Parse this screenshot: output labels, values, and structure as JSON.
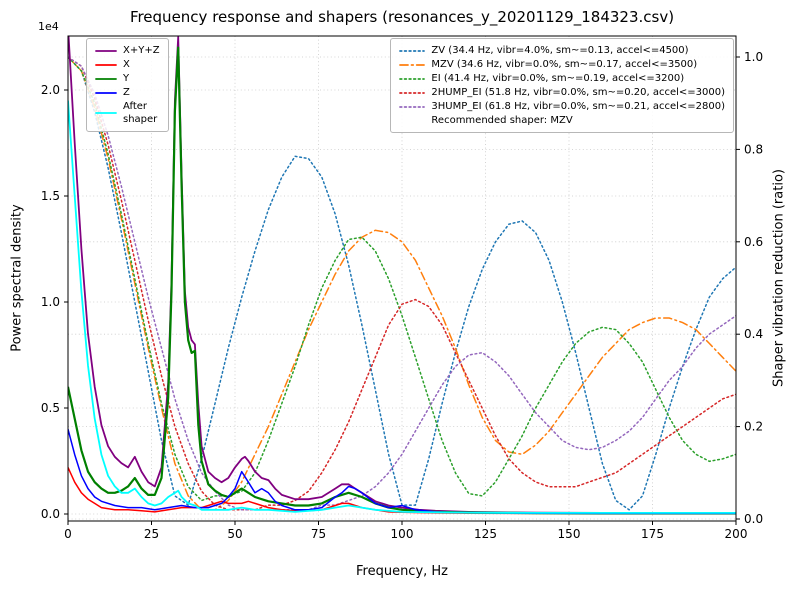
{
  "chart_data": {
    "type": "line",
    "title": "Frequency response and shapers (resonances_y_20201129_184323.csv)",
    "xlabel": "Frequency, Hz",
    "ylabel_left": "Power spectral density",
    "ylabel_right": "Shaper vibration reduction (ratio)",
    "left_axis_offset": "1e4",
    "xlim": [
      0,
      200
    ],
    "left_ylim_1e4": [
      0,
      2.25
    ],
    "right_ylim": [
      0,
      1.0
    ],
    "grid": true,
    "legend_positions": {
      "psd": "upper left",
      "shapers": "upper right"
    },
    "x_ticks": [
      0,
      25,
      50,
      75,
      100,
      125,
      150,
      175,
      200
    ],
    "left_tick_values": [
      0,
      0.5,
      1.0,
      1.5,
      2.0
    ],
    "left_tick_labels": [
      "0.0",
      "0.5",
      "1.0",
      "1.5",
      "2.0"
    ],
    "right_tick_values": [
      0,
      0.2,
      0.4,
      0.6,
      0.8,
      1.0
    ],
    "right_tick_labels": [
      "0.0",
      "0.2",
      "0.4",
      "0.6",
      "0.8",
      "1.0"
    ],
    "psd_units": "1e4",
    "psd_series": [
      {
        "name": "sum",
        "label": "X+Y+Z",
        "color": "#800080",
        "style": "solid",
        "width": 1.8,
        "x": [
          0,
          2,
          4,
          6,
          8,
          10,
          12,
          14,
          16,
          18,
          20,
          22,
          24,
          26,
          28,
          30,
          31,
          32,
          33,
          34,
          35,
          36,
          37,
          38,
          39,
          40,
          42,
          44,
          46,
          48,
          50,
          52,
          53,
          54,
          56,
          58,
          60,
          62,
          64,
          68,
          72,
          76,
          80,
          82,
          84,
          86,
          88,
          92,
          96,
          100,
          105,
          110,
          120,
          140,
          160,
          180,
          200
        ],
        "y": [
          2.3,
          1.75,
          1.25,
          0.85,
          0.6,
          0.42,
          0.32,
          0.27,
          0.24,
          0.22,
          0.27,
          0.2,
          0.15,
          0.13,
          0.22,
          0.62,
          1.1,
          1.95,
          2.25,
          1.6,
          1.05,
          0.88,
          0.82,
          0.8,
          0.52,
          0.32,
          0.2,
          0.17,
          0.15,
          0.17,
          0.22,
          0.26,
          0.27,
          0.25,
          0.2,
          0.17,
          0.16,
          0.12,
          0.09,
          0.07,
          0.07,
          0.08,
          0.12,
          0.14,
          0.14,
          0.12,
          0.1,
          0.06,
          0.04,
          0.03,
          0.02,
          0.015,
          0.01,
          0.006,
          0.005,
          0.004,
          0.004
        ]
      },
      {
        "name": "x",
        "label": "X",
        "color": "#ff0000",
        "style": "solid",
        "width": 1.5,
        "x": [
          0,
          2,
          4,
          6,
          8,
          10,
          14,
          18,
          22,
          26,
          30,
          34,
          36,
          38,
          40,
          42,
          44,
          46,
          48,
          50,
          52,
          54,
          56,
          58,
          60,
          64,
          68,
          72,
          76,
          80,
          82,
          84,
          86,
          88,
          92,
          96,
          100,
          110,
          120,
          140,
          160,
          180,
          200
        ],
        "y": [
          0.22,
          0.15,
          0.1,
          0.07,
          0.05,
          0.03,
          0.02,
          0.02,
          0.015,
          0.01,
          0.02,
          0.03,
          0.03,
          0.03,
          0.03,
          0.04,
          0.05,
          0.06,
          0.05,
          0.05,
          0.05,
          0.06,
          0.05,
          0.04,
          0.03,
          0.02,
          0.015,
          0.015,
          0.02,
          0.04,
          0.05,
          0.05,
          0.04,
          0.03,
          0.02,
          0.01,
          0.008,
          0.005,
          0.004,
          0.003,
          0.003,
          0.003,
          0.003
        ]
      },
      {
        "name": "y",
        "label": "Y",
        "color": "#008000",
        "style": "solid",
        "width": 2.2,
        "x": [
          0,
          2,
          4,
          6,
          8,
          10,
          12,
          14,
          16,
          18,
          20,
          22,
          24,
          26,
          28,
          30,
          31,
          32,
          33,
          34,
          35,
          36,
          37,
          38,
          39,
          40,
          42,
          44,
          46,
          48,
          50,
          52,
          54,
          56,
          58,
          60,
          64,
          68,
          72,
          76,
          80,
          84,
          88,
          92,
          96,
          100,
          110,
          120,
          140,
          160,
          180,
          200
        ],
        "y": [
          0.6,
          0.45,
          0.3,
          0.2,
          0.15,
          0.12,
          0.1,
          0.1,
          0.11,
          0.13,
          0.17,
          0.12,
          0.09,
          0.09,
          0.17,
          0.55,
          1.05,
          1.9,
          2.2,
          1.55,
          1.0,
          0.82,
          0.76,
          0.77,
          0.42,
          0.25,
          0.14,
          0.11,
          0.09,
          0.08,
          0.1,
          0.12,
          0.1,
          0.08,
          0.07,
          0.06,
          0.05,
          0.04,
          0.04,
          0.05,
          0.08,
          0.1,
          0.08,
          0.05,
          0.03,
          0.02,
          0.01,
          0.007,
          0.004,
          0.003,
          0.003,
          0.003
        ]
      },
      {
        "name": "z",
        "label": "Z",
        "color": "#0000ff",
        "style": "solid",
        "width": 1.5,
        "x": [
          0,
          2,
          4,
          6,
          8,
          10,
          14,
          18,
          22,
          26,
          30,
          34,
          38,
          42,
          46,
          48,
          50,
          52,
          54,
          56,
          58,
          60,
          62,
          64,
          68,
          72,
          76,
          80,
          82,
          84,
          86,
          88,
          92,
          96,
          100,
          104,
          110,
          120,
          140,
          160,
          180,
          200
        ],
        "y": [
          0.4,
          0.28,
          0.18,
          0.12,
          0.08,
          0.06,
          0.04,
          0.03,
          0.03,
          0.02,
          0.03,
          0.04,
          0.03,
          0.03,
          0.05,
          0.08,
          0.12,
          0.2,
          0.15,
          0.1,
          0.12,
          0.1,
          0.06,
          0.04,
          0.02,
          0.02,
          0.03,
          0.08,
          0.1,
          0.13,
          0.12,
          0.1,
          0.05,
          0.03,
          0.04,
          0.02,
          0.01,
          0.006,
          0.004,
          0.003,
          0.003,
          0.003
        ]
      },
      {
        "name": "after-shaper",
        "label": "After\nshaper",
        "color": "#00ffff",
        "style": "solid",
        "width": 1.8,
        "x": [
          0,
          2,
          4,
          6,
          8,
          10,
          12,
          14,
          16,
          18,
          20,
          22,
          24,
          26,
          28,
          30,
          32,
          33,
          34,
          36,
          38,
          40,
          44,
          48,
          52,
          56,
          60,
          68,
          76,
          80,
          84,
          88,
          92,
          100,
          110,
          120,
          140,
          160,
          180,
          200
        ],
        "y": [
          1.95,
          1.5,
          1.05,
          0.7,
          0.45,
          0.28,
          0.18,
          0.13,
          0.1,
          0.1,
          0.12,
          0.08,
          0.05,
          0.04,
          0.05,
          0.08,
          0.1,
          0.11,
          0.08,
          0.05,
          0.04,
          0.02,
          0.02,
          0.02,
          0.03,
          0.02,
          0.02,
          0.01,
          0.02,
          0.03,
          0.04,
          0.03,
          0.02,
          0.01,
          0.008,
          0.006,
          0.005,
          0.005,
          0.005,
          0.005
        ]
      }
    ],
    "shaper_x_step": 4,
    "shaper_series": [
      {
        "name": "ZV",
        "label": "ZV (34.4 Hz, vibr=4.0%, sm~=0.13, accel<=4500)",
        "color": "#1f77b4",
        "style": "dotted",
        "values": [
          1.0,
          0.97,
          0.88,
          0.76,
          0.62,
          0.47,
          0.32,
          0.17,
          0.05,
          0.03,
          0.13,
          0.25,
          0.37,
          0.48,
          0.58,
          0.67,
          0.74,
          0.785,
          0.78,
          0.74,
          0.66,
          0.55,
          0.42,
          0.28,
          0.14,
          0.03,
          0.03,
          0.13,
          0.25,
          0.36,
          0.46,
          0.54,
          0.6,
          0.638,
          0.645,
          0.62,
          0.56,
          0.47,
          0.36,
          0.24,
          0.12,
          0.04,
          0.02,
          0.05,
          0.14,
          0.24,
          0.33,
          0.41,
          0.48,
          0.52,
          0.545
        ]
      },
      {
        "name": "MZV",
        "label": "MZV (34.6 Hz, vibr=0.0%, sm~=0.17, accel<=3500)",
        "color": "#ff7f0e",
        "style": "dashdot",
        "values": [
          1.0,
          0.97,
          0.89,
          0.78,
          0.65,
          0.51,
          0.37,
          0.24,
          0.12,
          0.05,
          0.02,
          0.02,
          0.04,
          0.08,
          0.14,
          0.2,
          0.27,
          0.34,
          0.41,
          0.47,
          0.53,
          0.58,
          0.61,
          0.625,
          0.62,
          0.6,
          0.56,
          0.5,
          0.44,
          0.37,
          0.29,
          0.22,
          0.17,
          0.145,
          0.14,
          0.16,
          0.19,
          0.23,
          0.27,
          0.31,
          0.35,
          0.38,
          0.41,
          0.425,
          0.435,
          0.435,
          0.425,
          0.41,
          0.38,
          0.35,
          0.32
        ]
      },
      {
        "name": "EI",
        "label": "EI (41.4 Hz, vibr=0.0%, sm~=0.19, accel<=3200)",
        "color": "#2ca02c",
        "style": "dotted",
        "values": [
          1.0,
          0.97,
          0.9,
          0.79,
          0.66,
          0.52,
          0.38,
          0.25,
          0.14,
          0.07,
          0.04,
          0.05,
          0.05,
          0.06,
          0.1,
          0.17,
          0.25,
          0.33,
          0.42,
          0.5,
          0.56,
          0.605,
          0.61,
          0.58,
          0.52,
          0.44,
          0.35,
          0.26,
          0.17,
          0.1,
          0.055,
          0.05,
          0.08,
          0.13,
          0.18,
          0.24,
          0.29,
          0.34,
          0.38,
          0.405,
          0.415,
          0.41,
          0.38,
          0.34,
          0.28,
          0.22,
          0.17,
          0.14,
          0.125,
          0.13,
          0.14
        ]
      },
      {
        "name": "2HUMP_EI",
        "label": "2HUMP_EI (51.8 Hz, vibr=0.0%, sm~=0.20, accel<=3000)",
        "color": "#d62728",
        "style": "dotted",
        "values": [
          1.0,
          0.98,
          0.91,
          0.81,
          0.69,
          0.56,
          0.43,
          0.31,
          0.2,
          0.12,
          0.06,
          0.03,
          0.02,
          0.02,
          0.02,
          0.03,
          0.03,
          0.04,
          0.06,
          0.1,
          0.15,
          0.21,
          0.28,
          0.35,
          0.42,
          0.465,
          0.475,
          0.46,
          0.42,
          0.36,
          0.3,
          0.24,
          0.18,
          0.13,
          0.1,
          0.08,
          0.07,
          0.07,
          0.07,
          0.08,
          0.09,
          0.1,
          0.12,
          0.14,
          0.16,
          0.18,
          0.2,
          0.22,
          0.24,
          0.26,
          0.27
        ]
      },
      {
        "name": "3HUMP_EI",
        "label": "3HUMP_EI (61.8 Hz, vibr=0.0%, sm~=0.21, accel<=2800)",
        "color": "#9467bd",
        "style": "dotted",
        "values": [
          1.0,
          0.98,
          0.92,
          0.83,
          0.72,
          0.6,
          0.48,
          0.37,
          0.26,
          0.17,
          0.1,
          0.06,
          0.03,
          0.02,
          0.02,
          0.02,
          0.02,
          0.02,
          0.02,
          0.03,
          0.03,
          0.04,
          0.05,
          0.07,
          0.1,
          0.14,
          0.19,
          0.24,
          0.29,
          0.33,
          0.355,
          0.36,
          0.34,
          0.31,
          0.27,
          0.23,
          0.2,
          0.17,
          0.155,
          0.15,
          0.155,
          0.17,
          0.19,
          0.22,
          0.26,
          0.3,
          0.33,
          0.37,
          0.4,
          0.42,
          0.44
        ]
      }
    ],
    "legend_note": "Recommended shaper: MZV"
  }
}
